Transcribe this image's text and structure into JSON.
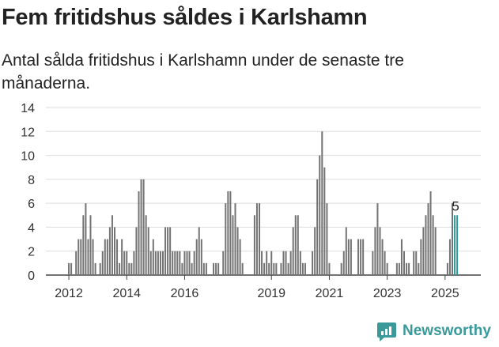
{
  "header": {
    "title": "Fem fritidshus såldes i Karlshamn",
    "subtitle": "Antal sålda fritidshus i Karlshamn under de senaste tre månaderna."
  },
  "brand": {
    "name": "Newsworthy",
    "icon": "newsworthy-logo-icon",
    "color": "#3a9a9a"
  },
  "colors": {
    "bar": "#737373",
    "highlight": "#2a9d9d",
    "grid": "#dddddd"
  },
  "chart_data": {
    "type": "bar",
    "title": "Fem fritidshus såldes i Karlshamn",
    "subtitle": "Antal sålda fritidshus i Karlshamn under de senaste tre månaderna.",
    "x_unit": "month",
    "start_month": "2011-12",
    "ylim": [
      0,
      14
    ],
    "yticks": [
      0,
      2,
      4,
      6,
      8,
      10,
      12,
      14
    ],
    "xticks": [
      "2012",
      "2014",
      "2016",
      "2019",
      "2021",
      "2023",
      "2025"
    ],
    "grid": true,
    "highlight_last": 2,
    "annotation": "5",
    "values": [
      0,
      1,
      1,
      0,
      2,
      3,
      3,
      5,
      6,
      3,
      5,
      3,
      1,
      0,
      1,
      2,
      3,
      3,
      4,
      5,
      4,
      3,
      1,
      3,
      2,
      2,
      1,
      1,
      2,
      4,
      7,
      8,
      8,
      5,
      4,
      2,
      3,
      2,
      2,
      2,
      2,
      4,
      4,
      4,
      2,
      2,
      2,
      2,
      1,
      2,
      2,
      2,
      1,
      2,
      3,
      4,
      3,
      1,
      1,
      0,
      0,
      1,
      1,
      1,
      0,
      2,
      6,
      7,
      7,
      5,
      6,
      4,
      3,
      1,
      0,
      0,
      0,
      0,
      5,
      6,
      6,
      2,
      1,
      2,
      1,
      2,
      1,
      1,
      0,
      1,
      2,
      2,
      1,
      2,
      4,
      5,
      5,
      2,
      1,
      1,
      0,
      0,
      2,
      4,
      8,
      10,
      12,
      9,
      6,
      1,
      0,
      0,
      0,
      0,
      1,
      2,
      4,
      3,
      3,
      0,
      0,
      3,
      3,
      3,
      0,
      0,
      0,
      2,
      4,
      6,
      4,
      3,
      2,
      1,
      0,
      0,
      0,
      1,
      1,
      3,
      2,
      1,
      1,
      0,
      2,
      2,
      1,
      3,
      4,
      5,
      6,
      7,
      5,
      4,
      0,
      0,
      0,
      0,
      1,
      3,
      6,
      5,
      5
    ]
  }
}
